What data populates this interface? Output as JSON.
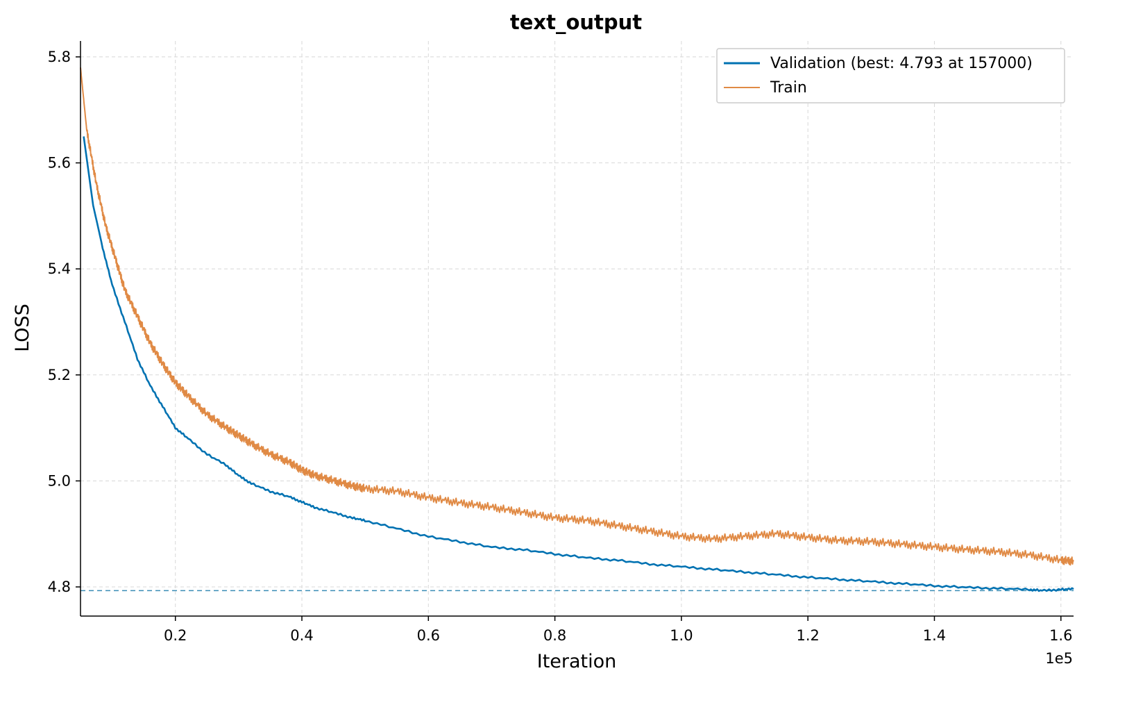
{
  "chart_data": {
    "type": "line",
    "title": "text_output",
    "xlabel": "Iteration",
    "ylabel": "LOSS",
    "x_offset_text": "1e5",
    "xlim": [
      5000,
      162000
    ],
    "ylim": [
      4.745,
      5.83
    ],
    "x_ticks": [
      {
        "value": 20000,
        "label": "0.2"
      },
      {
        "value": 40000,
        "label": "0.4"
      },
      {
        "value": 60000,
        "label": "0.6"
      },
      {
        "value": 80000,
        "label": "0.8"
      },
      {
        "value": 100000,
        "label": "1.0"
      },
      {
        "value": 120000,
        "label": "1.2"
      },
      {
        "value": 140000,
        "label": "1.4"
      },
      {
        "value": 160000,
        "label": "1.6"
      }
    ],
    "y_ticks": [
      {
        "value": 4.8,
        "label": "4.8"
      },
      {
        "value": 5.0,
        "label": "5.0"
      },
      {
        "value": 5.2,
        "label": "5.2"
      },
      {
        "value": 5.4,
        "label": "5.4"
      },
      {
        "value": 5.6,
        "label": "5.6"
      },
      {
        "value": 5.8,
        "label": "5.8"
      }
    ],
    "grid": true,
    "legend_position": "top-right",
    "series": [
      {
        "name": "Validation (best: 4.793 at 157000)",
        "color": "#0072B2",
        "x": [
          5500,
          7000,
          8500,
          10000,
          12000,
          14000,
          16000,
          18000,
          20000,
          22000,
          25000,
          28000,
          30000,
          32000,
          35000,
          38000,
          40000,
          42000,
          45000,
          48000,
          50000,
          55000,
          60000,
          65000,
          70000,
          75000,
          80000,
          85000,
          90000,
          95000,
          100000,
          105000,
          110000,
          115000,
          120000,
          125000,
          130000,
          135000,
          140000,
          145000,
          150000,
          155000,
          157000,
          160000,
          162000
        ],
        "values": [
          5.65,
          5.52,
          5.44,
          5.37,
          5.3,
          5.23,
          5.18,
          5.14,
          5.1,
          5.08,
          5.05,
          5.03,
          5.01,
          4.995,
          4.98,
          4.97,
          4.96,
          4.95,
          4.94,
          4.93,
          4.925,
          4.91,
          4.895,
          4.885,
          4.875,
          4.87,
          4.862,
          4.855,
          4.85,
          4.843,
          4.838,
          4.833,
          4.828,
          4.823,
          4.818,
          4.814,
          4.81,
          4.806,
          4.802,
          4.799,
          4.797,
          4.795,
          4.793,
          4.795,
          4.796
        ]
      },
      {
        "name": "Train",
        "color": "#E08A45",
        "x": [
          5000,
          6000,
          7500,
          9000,
          10500,
          12000,
          14000,
          16000,
          18000,
          20000,
          22000,
          25000,
          28000,
          30000,
          32000,
          35000,
          38000,
          40000,
          42000,
          45000,
          48000,
          50000,
          55000,
          60000,
          65000,
          70000,
          75000,
          80000,
          85000,
          90000,
          95000,
          100000,
          105000,
          110000,
          115000,
          120000,
          125000,
          130000,
          135000,
          140000,
          145000,
          150000,
          155000,
          160000,
          162000
        ],
        "values": [
          5.78,
          5.66,
          5.56,
          5.48,
          5.42,
          5.36,
          5.31,
          5.26,
          5.22,
          5.185,
          5.16,
          5.125,
          5.1,
          5.085,
          5.07,
          5.05,
          5.035,
          5.02,
          5.01,
          5.0,
          4.99,
          4.985,
          4.98,
          4.968,
          4.958,
          4.95,
          4.94,
          4.93,
          4.925,
          4.915,
          4.905,
          4.895,
          4.89,
          4.895,
          4.9,
          4.893,
          4.887,
          4.885,
          4.88,
          4.875,
          4.87,
          4.866,
          4.86,
          4.85,
          4.848
        ]
      }
    ],
    "reference_line": {
      "value": 4.793,
      "color": "#3A8DB5",
      "style": "dashed"
    }
  }
}
